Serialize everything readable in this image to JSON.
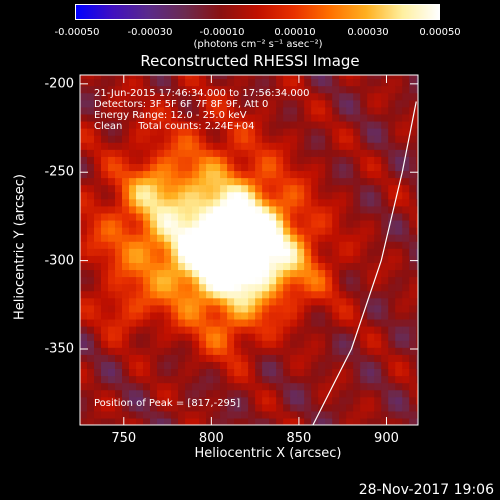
{
  "colorbar": {
    "ticks": [
      "-0.00050",
      "-0.00030",
      "-0.00010",
      "0.00010",
      "0.00030",
      "0.00050"
    ],
    "unit": "(photons cm⁻² s⁻¹ asec⁻²)",
    "min": -0.0005,
    "max": 0.0005,
    "stops": [
      "#0000ff",
      "#4010c0",
      "#5a2a8a",
      "#6b2a50",
      "#8a1010",
      "#c01000",
      "#e83000",
      "#ff7000",
      "#ffb020",
      "#fff0a0",
      "#ffffff"
    ]
  },
  "chart_data": {
    "type": "heatmap",
    "title": "Reconstructed RHESSI Image",
    "xlabel": "Heliocentric X (arcsec)",
    "ylabel": "Heliocentric Y (arcsec)",
    "xlim": [
      725,
      918
    ],
    "ylim": [
      -393,
      -195
    ],
    "xticks": [
      750,
      800,
      850,
      900
    ],
    "yticks": [
      -200,
      -250,
      -300,
      -350
    ],
    "peak": [
      817,
      -295
    ],
    "limb_curve": [
      [
        858,
        -393
      ],
      [
        880,
        -350
      ],
      [
        897,
        -300
      ],
      [
        909,
        -250
      ],
      [
        917,
        -210
      ]
    ],
    "annotations": {
      "line1": "21-Jun-2015 17:46:34.000 to 17:56:34.000",
      "line2": "Detectors: 3F 5F 6F 7F 8F 9F, Att 0",
      "line3": "Energy Range: 12.0 - 25.0 keV",
      "line4": "Clean     Total counts: 2.24E+04",
      "peak_text": "Position of Peak = [817,-295]"
    }
  },
  "date_stamp": "28-Nov-2017 19:06"
}
